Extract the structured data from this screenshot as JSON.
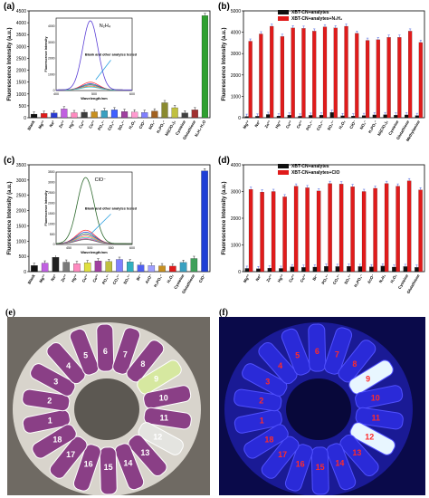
{
  "figure": {
    "panel_labels": [
      "(a)",
      "(b)",
      "(c)",
      "(d)",
      "(e)",
      "(f)"
    ]
  },
  "colors": {
    "black": "#111111",
    "red": "#e01b1b",
    "green": "#3aa02a",
    "blue": "#1f3fd6",
    "photo_bg": "#6f6a63",
    "uv_bg": "#0a0a4a",
    "uv_label": "#ff2a2a"
  },
  "chart_data": [
    {
      "id": "a",
      "type": "bar",
      "ylabel": "Fluorescence Intensity (a.u.)",
      "ylim": [
        0,
        4500
      ],
      "yticks": [
        0,
        500,
        1000,
        1500,
        2000,
        2500,
        3000,
        3500,
        4000,
        4500
      ],
      "categories": [
        "Blank",
        "Mg²⁺",
        "Na⁺",
        "Zn²⁺",
        "Hg²⁺",
        "Cu²⁺",
        "Co²⁺",
        "PO₄³⁻",
        "CO₃²⁻",
        "SO₄²⁻",
        "H₂O₂",
        "ClO⁻",
        "NO₂⁻",
        "H₂PO₄⁻",
        "Ni(ClO₄)₂",
        "Cysteine",
        "Glutathione",
        "N₂H₄·H₂O"
      ],
      "values": [
        150,
        180,
        200,
        370,
        210,
        230,
        250,
        300,
        330,
        260,
        240,
        220,
        280,
        630,
        420,
        200,
        330,
        4300
      ],
      "bar_colors": [
        "#111111",
        "#e01b1b",
        "#2a3bd0",
        "#c060e0",
        "#ff8ac0",
        "#3d3d3d",
        "#c89020",
        "#3aa0c0",
        "#4060ff",
        "#a040a0",
        "#ff9ad0",
        "#8080ff",
        "#a06020",
        "#8a8a30",
        "#c0c040",
        "#404040",
        "#a03030",
        "#2fa030"
      ],
      "inset": {
        "type": "line",
        "title": "N₂H₄",
        "xlabel": "Wavelength/nm",
        "ylabel": "Fluorescence Intensity",
        "ylim": [
          0,
          4500
        ],
        "xlim": [
          400,
          600
        ],
        "xticks": [
          400,
          500,
          600
        ],
        "yticks": [
          0,
          1000,
          2000,
          3000,
          4000
        ],
        "annotation": "Blank and other analytes tested",
        "main_peak": 4300,
        "main_peak_x": 490,
        "minor_peaks": [
          480,
          380,
          320,
          260,
          220,
          180
        ]
      }
    },
    {
      "id": "b",
      "type": "bar",
      "ylabel": "Fluorescence Intensity (a.u.)",
      "ylim": [
        0,
        5000
      ],
      "yticks": [
        0,
        1000,
        2000,
        3000,
        4000,
        5000
      ],
      "legend": [
        "XBT-CN+analytes",
        "XBT-CN+analytes+N₂H₄"
      ],
      "legend_position": "top-right",
      "categories": [
        "Mg²⁺",
        "Na⁺",
        "Zn²⁺",
        "Hg²⁺",
        "Cu²⁺",
        "Co²⁺",
        "PO₄³⁻",
        "CO₃²⁻",
        "SO₄²⁻",
        "H₂O₂",
        "ClO⁻",
        "NO₂⁻",
        "H₂PO₄⁻",
        "Ni(ClO₄)₂",
        "Cysteine",
        "Glutathione",
        "Methylamine"
      ],
      "series": [
        {
          "name": "XBT-CN+analytes",
          "values": [
            60,
            70,
            150,
            80,
            120,
            70,
            110,
            120,
            250,
            90,
            80,
            100,
            130,
            140,
            120,
            130,
            100
          ]
        },
        {
          "name": "XBT-CN+analytes+N₂H₄",
          "values": [
            3580,
            3920,
            4280,
            3800,
            4200,
            4180,
            4050,
            4250,
            4200,
            4280,
            3950,
            3620,
            3650,
            3760,
            3760,
            4050,
            3520
          ]
        }
      ]
    },
    {
      "id": "c",
      "type": "bar",
      "ylabel": "Fluorescence Intensity (a.u.)",
      "ylim": [
        0,
        3500
      ],
      "yticks": [
        0,
        500,
        1000,
        1500,
        2000,
        2500,
        3000,
        3500
      ],
      "categories": [
        "Blank",
        "Mg²⁺",
        "Na⁺",
        "Zn²⁺",
        "Hg²⁺",
        "Cu²⁺",
        "Co²⁺",
        "PO₄³⁻",
        "CO₃²⁻",
        "SO₄²⁻",
        "Br⁻",
        "AcO⁻",
        "H₂PO₄⁻",
        "H₂O₂",
        "Cysteine",
        "Glutathione",
        "ClO⁻"
      ],
      "values": [
        200,
        280,
        470,
        310,
        260,
        290,
        350,
        330,
        400,
        320,
        220,
        200,
        190,
        180,
        300,
        430,
        3300
      ],
      "bar_colors": [
        "#111111",
        "#c060e0",
        "#202020",
        "#7a7a7a",
        "#ff8ac0",
        "#e0e040",
        "#a040a0",
        "#c0c040",
        "#8080ff",
        "#30b0c0",
        "#5060f0",
        "#a0a0ff",
        "#c89020",
        "#e01b1b",
        "#3aa0c0",
        "#3fa05a",
        "#1f3fd6"
      ],
      "inset": {
        "type": "line",
        "title": "ClO⁻",
        "xlabel": "Wavelength/nm",
        "ylabel": "Fluorescence Intensity",
        "ylim": [
          0,
          3500
        ],
        "xlim": [
          420,
          600
        ],
        "xticks": [
          450,
          500,
          550,
          600
        ],
        "yticks": [
          0,
          500,
          1000,
          1500,
          2000,
          2500,
          3000,
          3500
        ],
        "annotation": "Blank and other analytes tested",
        "main_peak": 3200,
        "main_peak_x": 490,
        "minor_peaks": [
          650,
          560,
          480,
          420,
          360,
          300,
          240,
          200
        ]
      }
    },
    {
      "id": "d",
      "type": "bar",
      "ylabel": "Fluorescence Intensity (a.u.)",
      "ylim": [
        0,
        4000
      ],
      "yticks": [
        0,
        1000,
        2000,
        3000,
        4000
      ],
      "legend": [
        "XBT-CN+analytes",
        "XBT-CN+analytes+ClO"
      ],
      "legend_position": "top-right",
      "categories": [
        "Mg²⁺",
        "Na⁺",
        "Zn²⁺",
        "Hg²⁺",
        "Cu²⁺",
        "Co²⁺",
        "Br⁻",
        "PO₄³⁻",
        "CO₃²⁻",
        "SO₄²⁻",
        "H₂PO₄⁻",
        "AcO⁻",
        "N₂H₄",
        "H₂O₂",
        "Cysteine",
        "Glutathione"
      ],
      "series": [
        {
          "name": "XBT-CN+analytes",
          "values": [
            120,
            110,
            130,
            120,
            180,
            160,
            170,
            200,
            190,
            200,
            190,
            180,
            210,
            170,
            190,
            160
          ]
        },
        {
          "name": "XBT-CN+analytes+ClO",
          "values": [
            3080,
            2980,
            3000,
            2800,
            3200,
            3140,
            3020,
            3300,
            3280,
            3180,
            3000,
            3120,
            3300,
            3200,
            3400,
            3060
          ]
        }
      ]
    }
  ],
  "photo_e": {
    "tube_labels": [
      "1",
      "2",
      "3",
      "4",
      "5",
      "6",
      "7",
      "8",
      "9",
      "10",
      "11",
      "12",
      "13",
      "14",
      "15",
      "16",
      "17",
      "18"
    ]
  },
  "photo_f": {
    "tube_labels": [
      "1",
      "2",
      "3",
      "4",
      "5",
      "6",
      "7",
      "8",
      "9",
      "10",
      "11",
      "12",
      "13",
      "14",
      "15",
      "16",
      "17",
      "18"
    ]
  }
}
